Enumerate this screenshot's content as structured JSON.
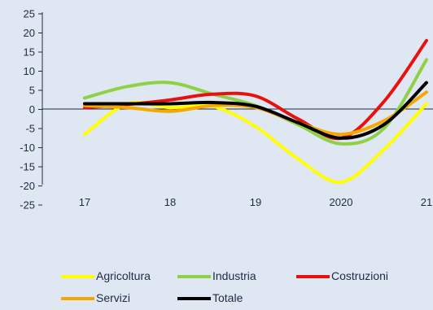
{
  "chart_data": {
    "type": "line",
    "x_tick_labels": [
      "17",
      "18",
      "19",
      "2020",
      "21"
    ],
    "ylim": [
      -25,
      25
    ],
    "y_ticks": [
      25,
      20,
      15,
      10,
      5,
      0,
      -5,
      -10,
      -15,
      -20,
      -25
    ],
    "grid": false,
    "legend_position": "bottom",
    "x": [
      2017,
      2017.5,
      2018,
      2018.5,
      2019,
      2019.5,
      2020,
      2020.5,
      2021
    ],
    "series": [
      {
        "name": "Agricoltura",
        "color": "#ffff00",
        "values": [
          -6.5,
          1.5,
          0.5,
          0.8,
          -4.5,
          -13,
          -19,
          -10.5,
          1.5
        ]
      },
      {
        "name": "Industria",
        "color": "#8ed145",
        "values": [
          3,
          6,
          7,
          4,
          1,
          -4,
          -9,
          -5,
          13
        ]
      },
      {
        "name": "Costruzioni",
        "color": "#e8110f",
        "values": [
          0.5,
          1.3,
          2.5,
          4,
          3.5,
          -2.5,
          -7.5,
          2,
          18
        ]
      },
      {
        "name": "Servizi",
        "color": "#f6a800",
        "values": [
          1,
          0.5,
          -0.5,
          1,
          0.5,
          -3.5,
          -6.5,
          -3,
          4.5
        ]
      },
      {
        "name": "Totale",
        "color": "#000000",
        "values": [
          1.5,
          1.5,
          1.5,
          1.8,
          0.8,
          -3.5,
          -7.5,
          -4,
          7
        ]
      }
    ]
  }
}
